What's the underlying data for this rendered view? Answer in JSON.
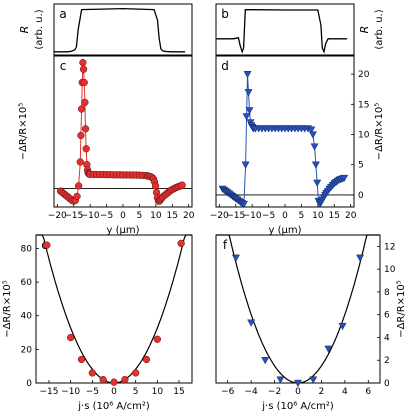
{
  "chart_data": [
    {
      "panel": "a",
      "type": "line",
      "ylabel": "R",
      "yunit": "(arb. u.)",
      "x": [
        -20,
        -16,
        -15,
        -14,
        -13.5,
        -13,
        -12,
        0,
        9,
        10,
        10.5,
        11,
        11.5,
        12,
        14,
        16,
        18
      ],
      "y": [
        0.02,
        0.02,
        0.03,
        0.06,
        0.12,
        0.5,
        0.93,
        0.95,
        0.93,
        0.7,
        0.3,
        0.08,
        0.04,
        0.03,
        0.02,
        0.02,
        0.02
      ],
      "xlim": [
        -20,
        20
      ]
    },
    {
      "panel": "b",
      "type": "line",
      "ylabel": "R",
      "yunit": "(arb. u.)",
      "x": [
        -20,
        -15,
        -13.5,
        -13,
        -12.4,
        -12,
        -11.5,
        0,
        9.5,
        10.4,
        10.8,
        11.3,
        11.8,
        12.5,
        15,
        18
      ],
      "y": [
        0.3,
        0.3,
        0.32,
        0.15,
        0.02,
        0.1,
        0.93,
        0.92,
        0.92,
        0.6,
        0.1,
        0.02,
        0.2,
        0.3,
        0.3,
        0.3
      ],
      "xlim": [
        -20,
        20
      ]
    },
    {
      "panel": "c",
      "type": "scatter",
      "xlabel": "y (μm)",
      "ylabel": "−ΔR/R×10⁵",
      "series": [
        {
          "color": "#e53030",
          "x": [
            -19,
            -18.5,
            -18,
            -17.5,
            -17,
            -16.5,
            -16,
            -15.5,
            -15,
            -14.5,
            -14,
            -13.5,
            -13,
            -12.8,
            -12.6,
            -12.4,
            -12.2,
            -12,
            -11.8,
            -11.6,
            -11.4,
            -11.2,
            -11,
            -10.8,
            -10.6,
            -10.4,
            -10.2,
            -10,
            -9,
            -8,
            -7,
            -6,
            -5,
            -4,
            -3,
            -2,
            -1,
            0,
            1,
            2,
            3,
            4,
            5,
            6,
            7,
            7.5,
            8,
            8.5,
            9,
            9.3,
            9.6,
            9.9,
            10.2,
            10.5,
            10.8,
            11.1,
            11.4,
            11.7,
            12,
            12.5,
            13,
            13.5,
            14,
            14.5,
            15,
            15.5,
            16,
            16.5,
            17,
            17.5,
            18
          ],
          "y": [
            -2,
            -3,
            -4,
            -5,
            -6,
            -7,
            -8,
            -9,
            -9.5,
            -9,
            -6,
            2,
            20,
            40,
            60,
            80,
            95,
            90,
            80,
            65,
            45,
            30,
            18,
            14,
            12,
            11,
            10.8,
            10.7,
            10.6,
            10.5,
            10.5,
            10.5,
            10.4,
            10.4,
            10.3,
            10.3,
            10.3,
            10.2,
            10.2,
            10.2,
            10.1,
            10.1,
            10,
            9.9,
            9.7,
            9.5,
            9.2,
            8.8,
            8,
            7,
            5,
            2,
            -3,
            -7,
            -9.5,
            -9.5,
            -8.5,
            -7.5,
            -6.5,
            -5.5,
            -4.5,
            -3.5,
            -2.5,
            -1.5,
            -0.8,
            -0.2,
            0.5,
            1,
            1.5,
            2,
            2.5
          ]
        }
      ],
      "xlim": [
        -21,
        21
      ],
      "xticks": [
        "−20",
        "−15",
        "−10",
        "−5",
        "0",
        "5",
        "10",
        "15",
        "20"
      ]
    },
    {
      "panel": "d",
      "type": "scatter",
      "xlabel": "y (μm)",
      "ylabel": "−ΔR/R×10⁵",
      "series": [
        {
          "color": "#2a50b8",
          "x": [
            -19,
            -18.5,
            -18,
            -17.5,
            -17,
            -16.5,
            -16,
            -15.5,
            -15,
            -14.5,
            -14,
            -13.5,
            -13,
            -12.5,
            -12,
            -11.7,
            -11.4,
            -11.1,
            -10.8,
            -10.5,
            -10.2,
            -9.9,
            -9.6,
            -9,
            -8,
            -7,
            -6,
            -5,
            -4,
            -3,
            -2,
            -1,
            0,
            1,
            2,
            3,
            4,
            5,
            6,
            7,
            8,
            8.5,
            9,
            9.4,
            9.8,
            10.2,
            10.6,
            11,
            11.4,
            11.8,
            12.2,
            12.6,
            13,
            13.5,
            14,
            14.5,
            15,
            15.5,
            16,
            16.5,
            17,
            17.5,
            18
          ],
          "y": [
            1,
            0.8,
            0.6,
            0.4,
            0.2,
            0,
            -0.2,
            -0.4,
            -0.6,
            -0.8,
            -1,
            -1.2,
            -1.4,
            -1.5,
            5,
            13,
            20,
            17,
            14,
            12,
            11.5,
            11.2,
            11,
            11,
            11,
            11,
            11,
            11,
            11,
            11,
            11,
            11,
            11,
            11,
            11,
            11,
            11,
            11,
            11,
            11,
            10.8,
            10,
            8,
            5,
            2,
            -1,
            -1.5,
            -1.2,
            -0.8,
            -0.4,
            0,
            0.3,
            0.6,
            1,
            1.3,
            1.6,
            1.9,
            2.1,
            2.3,
            2.5,
            2.6,
            2.7,
            2.8
          ]
        }
      ],
      "xlim": [
        -21,
        21
      ],
      "ylim": [
        -2,
        23
      ],
      "yticks": [
        "0",
        "5",
        "10",
        "15",
        "20"
      ],
      "xticks": [
        "−20",
        "−15",
        "−10",
        "−5",
        "0",
        "5",
        "10",
        "15",
        "20"
      ]
    },
    {
      "panel": "e",
      "type": "scatter",
      "xlabel": "j·s (10⁶ A/cm²)",
      "ylabel": "−ΔR/R×10⁵",
      "series": [
        {
          "color": "#e53030",
          "x": [
            -15.5,
            -10,
            -7.5,
            -5,
            -2.5,
            0,
            2.5,
            5,
            7.5,
            10,
            15.5
          ],
          "y": [
            82,
            27,
            14,
            6,
            2,
            0.5,
            2,
            6,
            14,
            26,
            83
          ]
        }
      ],
      "fit": "parabola",
      "xlim": [
        -18,
        18
      ],
      "ylim": [
        0,
        88
      ],
      "yticks": [
        "0",
        "20",
        "40",
        "60",
        "80"
      ],
      "xticks": [
        "−15",
        "−10",
        "−5",
        "0",
        "5",
        "10",
        "15"
      ]
    },
    {
      "panel": "f",
      "type": "scatter",
      "xlabel": "j·s (10⁶ A/cm²)",
      "ylabel": "−ΔR/R×10⁵",
      "series": [
        {
          "color": "#2a50b8",
          "x": [
            -5.3,
            -4,
            -2.8,
            -1.5,
            0,
            1.3,
            2.6,
            3.8,
            5.3
          ],
          "y": [
            11,
            5.3,
            2,
            0.3,
            0,
            0.3,
            3,
            5,
            11
          ]
        }
      ],
      "fit": "parabola",
      "xlim": [
        -7,
        7
      ],
      "ylim": [
        0,
        13
      ],
      "yticks": [
        "0",
        "2",
        "4",
        "6",
        "8",
        "10",
        "12"
      ],
      "xticks": [
        "−6",
        "−4",
        "−2",
        "0",
        "2",
        "4",
        "6"
      ]
    }
  ],
  "colors": {
    "red": "#e53030",
    "blue": "#2a50b8"
  }
}
